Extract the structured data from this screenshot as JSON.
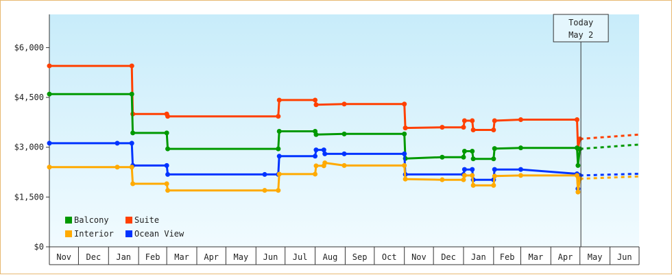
{
  "chart_data": {
    "type": "line",
    "style": "step",
    "x_type": "date",
    "xlim": [
      "2023-11-01",
      "2025-07-01"
    ],
    "ylim": [
      0,
      7000
    ],
    "y_ticks": [
      0,
      1500,
      3000,
      4500,
      6000
    ],
    "y_tick_labels": [
      "$0",
      "$1,500",
      "$3,000",
      "$4,500",
      "$6,000"
    ],
    "month_labels": [
      "Nov",
      "Dec",
      "Jan",
      "Feb",
      "Mar",
      "Apr",
      "May",
      "Jun",
      "Jul",
      "Aug",
      "Sep",
      "Oct",
      "Nov",
      "Dec",
      "Jan",
      "Feb",
      "Mar",
      "Apr",
      "May",
      "Jun"
    ],
    "month_starts": [
      "2023-11-01",
      "2023-12-01",
      "2024-01-01",
      "2024-02-01",
      "2024-03-01",
      "2024-04-01",
      "2024-05-01",
      "2024-06-01",
      "2024-07-01",
      "2024-08-01",
      "2024-09-01",
      "2024-10-01",
      "2024-11-01",
      "2024-12-01",
      "2025-01-01",
      "2025-02-01",
      "2025-03-01",
      "2025-04-01",
      "2025-05-01",
      "2025-06-01",
      "2025-07-01"
    ],
    "today": {
      "date": "2025-05-02",
      "line1": "Today",
      "line2": "May 2"
    },
    "grid": false,
    "legend_position": "bottom-left",
    "colors": {
      "bg_top": "#c8ecfa",
      "bg_bottom": "#f1fbff",
      "axis": "#333333",
      "border": "#e8b870"
    },
    "series": [
      {
        "name": "Suite",
        "color": "#ff4000",
        "points": [
          [
            "2023-11-01",
            5450
          ],
          [
            "2024-01-25",
            5450
          ],
          [
            "2024-01-26",
            4000
          ],
          [
            "2024-03-01",
            4000
          ],
          [
            "2024-03-02",
            3930
          ],
          [
            "2024-06-24",
            3930
          ],
          [
            "2024-06-25",
            4420
          ],
          [
            "2024-08-01",
            4420
          ],
          [
            "2024-08-02",
            4280
          ],
          [
            "2024-08-31",
            4300
          ],
          [
            "2024-11-01",
            4300
          ],
          [
            "2024-11-02",
            3580
          ],
          [
            "2024-12-10",
            3600
          ],
          [
            "2025-01-01",
            3600
          ],
          [
            "2025-01-02",
            3800
          ],
          [
            "2025-01-10",
            3800
          ],
          [
            "2025-01-11",
            3520
          ],
          [
            "2025-02-01",
            3520
          ],
          [
            "2025-02-02",
            3800
          ],
          [
            "2025-03-01",
            3830
          ],
          [
            "2025-04-28",
            3830
          ],
          [
            "2025-04-29",
            2950
          ],
          [
            "2025-05-01",
            3250
          ]
        ],
        "forecast": [
          [
            "2025-05-01",
            3250
          ],
          [
            "2025-07-01",
            3380
          ]
        ]
      },
      {
        "name": "Balcony",
        "color": "#009900",
        "points": [
          [
            "2023-11-01",
            4600
          ],
          [
            "2024-01-25",
            4600
          ],
          [
            "2024-01-26",
            3430
          ],
          [
            "2024-03-01",
            3430
          ],
          [
            "2024-03-02",
            2950
          ],
          [
            "2024-06-24",
            2950
          ],
          [
            "2024-06-25",
            3480
          ],
          [
            "2024-08-01",
            3480
          ],
          [
            "2024-08-02",
            3380
          ],
          [
            "2024-08-31",
            3400
          ],
          [
            "2024-11-01",
            3400
          ],
          [
            "2024-11-02",
            2660
          ],
          [
            "2024-12-10",
            2700
          ],
          [
            "2025-01-01",
            2700
          ],
          [
            "2025-01-02",
            2880
          ],
          [
            "2025-01-10",
            2880
          ],
          [
            "2025-01-11",
            2650
          ],
          [
            "2025-02-01",
            2650
          ],
          [
            "2025-02-02",
            2960
          ],
          [
            "2025-03-01",
            2980
          ],
          [
            "2025-04-28",
            2980
          ],
          [
            "2025-04-29",
            2450
          ],
          [
            "2025-05-01",
            2950
          ]
        ],
        "forecast": [
          [
            "2025-05-01",
            2950
          ],
          [
            "2025-07-01",
            3080
          ]
        ]
      },
      {
        "name": "Ocean View",
        "color": "#0033ff",
        "points": [
          [
            "2023-11-01",
            3120
          ],
          [
            "2024-01-10",
            3120
          ],
          [
            "2024-01-25",
            3120
          ],
          [
            "2024-01-26",
            2450
          ],
          [
            "2024-03-01",
            2450
          ],
          [
            "2024-03-02",
            2180
          ],
          [
            "2024-06-10",
            2180
          ],
          [
            "2024-06-24",
            2180
          ],
          [
            "2024-06-25",
            2730
          ],
          [
            "2024-08-01",
            2730
          ],
          [
            "2024-08-02",
            2920
          ],
          [
            "2024-08-10",
            2920
          ],
          [
            "2024-08-11",
            2800
          ],
          [
            "2024-08-31",
            2800
          ],
          [
            "2024-11-01",
            2800
          ],
          [
            "2024-11-02",
            2180
          ],
          [
            "2025-01-01",
            2180
          ],
          [
            "2025-01-02",
            2330
          ],
          [
            "2025-01-10",
            2330
          ],
          [
            "2025-01-11",
            2020
          ],
          [
            "2025-02-01",
            2020
          ],
          [
            "2025-02-02",
            2330
          ],
          [
            "2025-03-01",
            2330
          ],
          [
            "2025-04-28",
            2200
          ],
          [
            "2025-04-29",
            1750
          ],
          [
            "2025-05-01",
            2150
          ]
        ],
        "forecast": [
          [
            "2025-05-01",
            2150
          ],
          [
            "2025-07-01",
            2200
          ]
        ]
      },
      {
        "name": "Interior",
        "color": "#ffaa00",
        "points": [
          [
            "2023-11-01",
            2400
          ],
          [
            "2024-01-10",
            2400
          ],
          [
            "2024-01-25",
            2400
          ],
          [
            "2024-01-26",
            1900
          ],
          [
            "2024-03-01",
            1900
          ],
          [
            "2024-03-02",
            1700
          ],
          [
            "2024-06-10",
            1700
          ],
          [
            "2024-06-24",
            1700
          ],
          [
            "2024-06-25",
            2190
          ],
          [
            "2024-08-01",
            2190
          ],
          [
            "2024-08-02",
            2440
          ],
          [
            "2024-08-10",
            2440
          ],
          [
            "2024-08-11",
            2530
          ],
          [
            "2024-08-31",
            2450
          ],
          [
            "2024-11-01",
            2450
          ],
          [
            "2024-11-02",
            2040
          ],
          [
            "2024-12-10",
            2020
          ],
          [
            "2025-01-01",
            2020
          ],
          [
            "2025-01-02",
            2150
          ],
          [
            "2025-01-10",
            2150
          ],
          [
            "2025-01-11",
            1850
          ],
          [
            "2025-02-01",
            1850
          ],
          [
            "2025-02-02",
            2130
          ],
          [
            "2025-03-01",
            2150
          ],
          [
            "2025-04-28",
            2150
          ],
          [
            "2025-04-29",
            1650
          ],
          [
            "2025-05-01",
            2050
          ]
        ],
        "forecast": [
          [
            "2025-05-01",
            2050
          ],
          [
            "2025-07-01",
            2120
          ]
        ]
      }
    ],
    "legend": [
      {
        "name": "Balcony",
        "color": "#009900"
      },
      {
        "name": "Suite",
        "color": "#ff4000"
      },
      {
        "name": "Interior",
        "color": "#ffaa00"
      },
      {
        "name": "Ocean View",
        "color": "#0033ff"
      }
    ]
  }
}
